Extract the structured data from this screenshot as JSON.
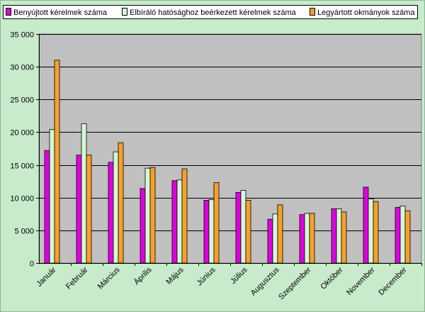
{
  "chart_data": {
    "type": "bar",
    "title": "",
    "xlabel": "",
    "ylabel": "",
    "ylim": [
      0,
      35000
    ],
    "y_ticks": [
      0,
      5000,
      10000,
      15000,
      20000,
      25000,
      30000,
      35000
    ],
    "y_tick_labels": [
      "0",
      "5 000",
      "10 000",
      "15 000",
      "20 000",
      "25 000",
      "30 000",
      "35 000"
    ],
    "grid": "horizontal",
    "legend_position": "top",
    "plot_background": "#c0c0c0",
    "categories": [
      "Január",
      "Február",
      "Március",
      "Április",
      "Május",
      "Június",
      "Július",
      "Augusztus",
      "Szeptember",
      "Október",
      "November",
      "December"
    ],
    "series": [
      {
        "name": "Benyújtott kérelmek száma",
        "color": "#e000e0",
        "values": [
          17200,
          16500,
          15400,
          11400,
          12600,
          9600,
          10800,
          6700,
          7400,
          8300,
          11600,
          8500
        ]
      },
      {
        "name": "Elbíráló hatósághoz beérkezett kérelmek száma",
        "color": "#d6f7d6",
        "values": [
          20400,
          21300,
          17000,
          14500,
          12700,
          9700,
          11100,
          7500,
          7600,
          8300,
          9800,
          8700
        ]
      },
      {
        "name": "Legyártott okmányok száma",
        "color": "#f7a02a",
        "values": [
          31000,
          16500,
          18400,
          14600,
          14400,
          12300,
          9600,
          8900,
          7600,
          7800,
          9400,
          8000
        ]
      }
    ]
  }
}
